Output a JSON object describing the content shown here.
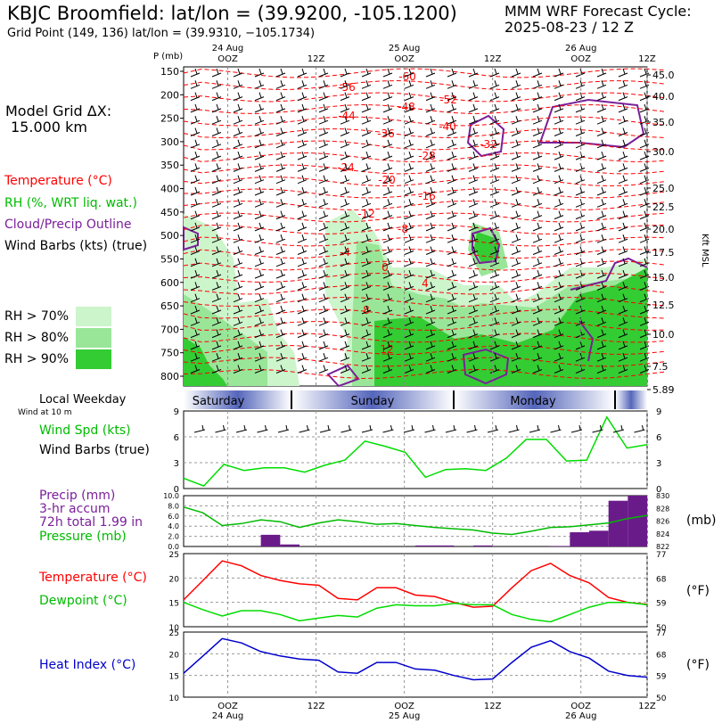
{
  "header": {
    "title": "KBJC Broomfield:  lat/lon = (39.9200, -105.1200)",
    "grid_point": "Grid Point (149, 136) lat/lon = (39.9310, −105.1734)",
    "cycle_line1": "MMM WRF Forecast Cycle:",
    "cycle_line2": "2025-08-23 / 12  Z",
    "model_dx_line1": "Model Grid ΔX:",
    "model_dx_line2": "15.000 km"
  },
  "legend": {
    "temperature": "Temperature (°C)",
    "rh": "RH (%, WRT liq. wat.)",
    "cloud": "Cloud/Precip Outline",
    "wind": "Wind Barbs (kts) (true)",
    "rh_levels": [
      {
        "label": "RH > 70%",
        "color": "#ccf5cc"
      },
      {
        "label": "RH > 80%",
        "color": "#99e699"
      },
      {
        "label": "RH > 90%",
        "color": "#33cc33"
      }
    ]
  },
  "time_axis": {
    "top_dates": [
      "24 Aug",
      "25 Aug",
      "26 Aug"
    ],
    "bottom_dates": [
      "24 Aug",
      "25 Aug",
      "26 Aug"
    ],
    "ticks": [
      "OOZ",
      "12Z",
      "OOZ",
      "12Z",
      "OOZ",
      "12Z"
    ],
    "days": [
      "Saturday",
      "Sunday",
      "Monday"
    ]
  },
  "chart_data": [
    {
      "type": "contour",
      "name": "cross-section",
      "ylabel": "P (mb)",
      "y2label": "Kft MSL",
      "pressure_ticks": [
        "150",
        "200",
        "250",
        "300",
        "350",
        "400",
        "450",
        "500",
        "550",
        "600",
        "650",
        "700",
        "750",
        "800"
      ],
      "height_ticks": [
        "45.0",
        "40.0",
        "35.0",
        "30.0",
        "25.0",
        "22.5",
        "20.0",
        "17.5",
        "15.0",
        "12.5",
        "10.0",
        "7.5",
        "5.89"
      ],
      "temperature_labels": [
        "-60",
        "-56",
        "-52",
        "-48",
        "-44",
        "-40",
        "-36",
        "-32",
        "-28",
        "-24",
        "-20",
        "-16",
        "-12",
        "-8",
        "-4",
        "0",
        "4",
        "8",
        "12"
      ],
      "colors": {
        "temperature": "#ff0000",
        "cloud": "#7a1f99"
      }
    },
    {
      "type": "line",
      "name": "wind-speed",
      "title_lines": [
        "Wind Spd (kts)",
        "Wind Barbs (true)"
      ],
      "local_weekday": "Local Weekday",
      "wind_height": "Wind at 10 m",
      "y_ticks": [
        "9",
        "6",
        "3",
        "0"
      ],
      "ylim": [
        0,
        9
      ],
      "x_hours": [
        15,
        18,
        21,
        24,
        27,
        30,
        33,
        36,
        39,
        42,
        45,
        48,
        51,
        54,
        57,
        60,
        63,
        66,
        69,
        72
      ],
      "values": [
        1.2,
        0.3,
        2.8,
        2.1,
        2.4,
        2.4,
        1.9,
        2.7,
        3.3,
        5.5,
        4.9,
        4.2,
        1.3,
        2.2,
        2.3,
        2.1,
        3.5,
        5.7,
        5.7,
        3.2,
        3.3,
        8.3,
        4.7,
        5.1
      ],
      "x": [
        0,
        3,
        6,
        9,
        12,
        15,
        18,
        21,
        24,
        27,
        30,
        33,
        36,
        39,
        42,
        45,
        48,
        51,
        54,
        57,
        60,
        63,
        66,
        69
      ],
      "color": "#00dd00"
    },
    {
      "type": "bar+line",
      "name": "precip-pressure",
      "labels": [
        "Precip (mm)",
        "3-hr accum",
        "72h total 1.99 in",
        "Pressure (mb)"
      ],
      "unit_right": "(mb)",
      "precip_ticks": [
        "10.0",
        "8.0",
        "6.0",
        "4.0",
        "2.0",
        "0.0"
      ],
      "pressure_ticks": [
        "830",
        "828",
        "826",
        "824",
        "822"
      ],
      "precip_ylim": [
        0,
        10
      ],
      "pressure_ylim": [
        822,
        830
      ],
      "x": [
        0,
        3,
        6,
        9,
        12,
        15,
        18,
        21,
        24,
        27,
        30,
        33,
        36,
        39,
        42,
        45,
        48,
        51,
        54,
        57,
        60,
        63,
        66,
        69,
        72
      ],
      "precip_bars": [
        {
          "x0": 12,
          "x1": 15,
          "value": 2.3
        },
        {
          "x0": 15,
          "x1": 18,
          "value": 0.4
        },
        {
          "x0": 36,
          "x1": 39,
          "value": 0.2
        },
        {
          "x0": 39,
          "x1": 42,
          "value": 0.2
        },
        {
          "x0": 45,
          "x1": 48,
          "value": 0.2
        },
        {
          "x0": 57,
          "x1": 60,
          "value": 0.1
        },
        {
          "x0": 60,
          "x1": 63,
          "value": 2.8
        },
        {
          "x0": 63,
          "x1": 66,
          "value": 3.1
        },
        {
          "x0": 66,
          "x1": 69,
          "value": 9.0
        },
        {
          "x0": 69,
          "x1": 72,
          "value": 10.0
        }
      ],
      "pressure": [
        828.2,
        827.3,
        825.3,
        825.6,
        826.2,
        825.9,
        825.0,
        825.7,
        826.2,
        825.9,
        825.5,
        825.6,
        825.3,
        825.0,
        824.8,
        824.6,
        824.1,
        823.9,
        824.4,
        825.0,
        825.1,
        825.4,
        825.7,
        826.4,
        826.9
      ],
      "precip_color": "#6a1b8a",
      "pressure_color": "#00bb00"
    },
    {
      "type": "line",
      "name": "temperature-dewpoint",
      "labels": [
        "Temperature (°C)",
        "Dewpoint (°C)"
      ],
      "unit_right": "(°F)",
      "y_ticks": [
        "25",
        "20",
        "15",
        "10"
      ],
      "y2_ticks": [
        "77",
        "68",
        "59",
        "50"
      ],
      "ylim": [
        10,
        25
      ],
      "x": [
        0,
        3,
        6,
        9,
        12,
        15,
        18,
        21,
        24,
        27,
        30,
        33,
        36,
        39,
        42,
        45,
        48,
        51,
        54,
        57,
        60,
        63,
        66,
        69,
        72
      ],
      "series": [
        {
          "name": "Temperature",
          "color": "#ff0000",
          "values": [
            15.5,
            19.5,
            23.5,
            22.5,
            20.5,
            19.5,
            18.8,
            18.5,
            15.8,
            15.5,
            18.0,
            18.0,
            16.5,
            16.2,
            15.0,
            14.0,
            14.2,
            18.0,
            21.5,
            23.0,
            20.5,
            19.0,
            16.0,
            15.0,
            14.6
          ]
        },
        {
          "name": "Dewpoint",
          "color": "#00dd00",
          "values": [
            15.0,
            13.5,
            12.2,
            13.3,
            13.3,
            12.5,
            11.2,
            11.8,
            12.3,
            12.0,
            13.8,
            14.5,
            14.3,
            14.3,
            14.8,
            14.5,
            14.5,
            12.5,
            11.5,
            11.0,
            12.5,
            14.0,
            15.0,
            15.0,
            14.5
          ]
        }
      ]
    },
    {
      "type": "line",
      "name": "heat-index",
      "labels": [
        "Heat Index (°C)"
      ],
      "unit_right": "(°F)",
      "y_ticks": [
        "25",
        "20",
        "15",
        "10"
      ],
      "y2_ticks": [
        "77",
        "68",
        "59",
        "50"
      ],
      "ylim": [
        10,
        25
      ],
      "x": [
        0,
        3,
        6,
        9,
        12,
        15,
        18,
        21,
        24,
        27,
        30,
        33,
        36,
        39,
        42,
        45,
        48,
        51,
        54,
        57,
        60,
        63,
        66,
        69,
        72
      ],
      "series": [
        {
          "name": "Heat Index",
          "color": "#0000cc",
          "values": [
            15.5,
            19.5,
            23.5,
            22.5,
            20.5,
            19.5,
            18.8,
            18.5,
            15.8,
            15.5,
            18.0,
            18.0,
            16.5,
            16.2,
            15.0,
            14.0,
            14.2,
            18.0,
            21.5,
            23.0,
            20.5,
            19.0,
            16.0,
            15.0,
            14.6
          ]
        }
      ]
    }
  ]
}
